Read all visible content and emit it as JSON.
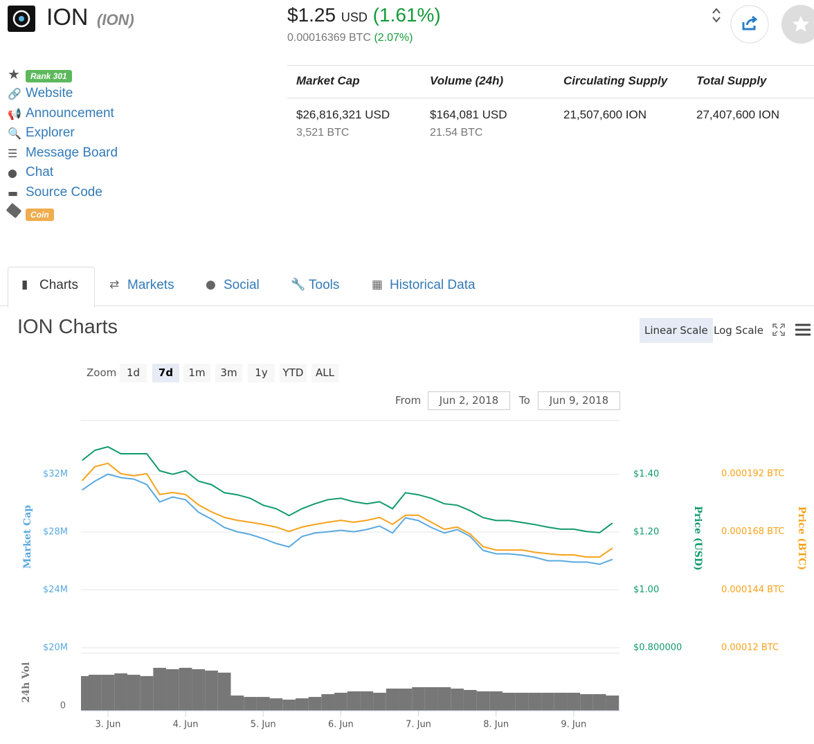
{
  "header": {
    "name": "ION",
    "symbol": "(ION)",
    "price": "$1.25",
    "currency": "USD",
    "change": "(1.61%)",
    "btc_price": "0.00016369 BTC",
    "btc_change": "(2.07%)"
  },
  "sidebar": {
    "rank": "Rank 301",
    "links": [
      "Website",
      "Announcement",
      "Explorer",
      "Message Board",
      "Chat",
      "Source Code"
    ],
    "tag": "Coin"
  },
  "stats": [
    {
      "label": "Market Cap",
      "value": "$26,816,321 USD",
      "btc": "3,521 BTC"
    },
    {
      "label": "Volume (24h)",
      "value": "$164,081 USD",
      "btc": "21.54 BTC"
    },
    {
      "label": "Circulating Supply",
      "value": "21,507,600 ION"
    },
    {
      "label": "Total Supply",
      "value": "27,407,600 ION"
    }
  ],
  "tabs": [
    "Charts",
    "Markets",
    "Social",
    "Tools",
    "Historical Data"
  ],
  "active_tab": 0,
  "chart_section": {
    "title": "ION Charts",
    "scale_buttons": [
      "Linear Scale",
      "Log Scale"
    ],
    "active_scale": 0,
    "zoom_label": "Zoom",
    "zoom_options": [
      "1d",
      "7d",
      "1m",
      "3m",
      "1y",
      "YTD",
      "ALL"
    ],
    "active_zoom": 1,
    "from_label": "From",
    "from": "Jun 2, 2018",
    "to_label": "To",
    "to": "Jun 9, 2018"
  },
  "chart_data": {
    "type": "line",
    "x": [
      "2018-06-02T16:00",
      "2018-06-02T20:00",
      "2018-06-03T00:00",
      "2018-06-03T04:00",
      "2018-06-03T08:00",
      "2018-06-03T12:00",
      "2018-06-03T16:00",
      "2018-06-03T20:00",
      "2018-06-04T00:00",
      "2018-06-04T04:00",
      "2018-06-04T08:00",
      "2018-06-04T12:00",
      "2018-06-04T16:00",
      "2018-06-04T20:00",
      "2018-06-05T00:00",
      "2018-06-05T04:00",
      "2018-06-05T08:00",
      "2018-06-05T12:00",
      "2018-06-05T16:00",
      "2018-06-05T20:00",
      "2018-06-06T00:00",
      "2018-06-06T04:00",
      "2018-06-06T08:00",
      "2018-06-06T12:00",
      "2018-06-06T16:00",
      "2018-06-06T20:00",
      "2018-06-07T00:00",
      "2018-06-07T04:00",
      "2018-06-07T08:00",
      "2018-06-07T12:00",
      "2018-06-07T16:00",
      "2018-06-07T20:00",
      "2018-06-08T00:00",
      "2018-06-08T04:00",
      "2018-06-08T08:00",
      "2018-06-08T12:00",
      "2018-06-08T16:00",
      "2018-06-08T20:00",
      "2018-06-09T00:00",
      "2018-06-09T04:00",
      "2018-06-09T08:00",
      "2018-06-09T12:00"
    ],
    "xlim": [
      "2018-06-02T15:40",
      "2018-06-09T14:10"
    ],
    "xticks": [
      {
        "value": "2018-06-03T00:00",
        "label": "3. Jun"
      },
      {
        "value": "2018-06-04T00:00",
        "label": "4. Jun"
      },
      {
        "value": "2018-06-05T00:00",
        "label": "5. Jun"
      },
      {
        "value": "2018-06-06T00:00",
        "label": "6. Jun"
      },
      {
        "value": "2018-06-07T00:00",
        "label": "7. Jun"
      },
      {
        "value": "2018-06-08T00:00",
        "label": "8. Jun"
      },
      {
        "value": "2018-06-09T00:00",
        "label": "9. Jun"
      }
    ],
    "ylim": [
      20000000,
      35710000
    ],
    "yticks": [
      {
        "value": 20000000,
        "label": "$20M"
      },
      {
        "value": 24000000,
        "label": "$24M"
      },
      {
        "value": 28000000,
        "label": "$28M"
      },
      {
        "value": 32000000,
        "label": "$32M"
      }
    ],
    "y2lim": [
      0.8,
      1.586
    ],
    "y2ticks": [
      {
        "value": 0.8,
        "label": "$0.800000"
      },
      {
        "value": 1,
        "label": "$1.00"
      },
      {
        "value": 1.2,
        "label": "$1.20"
      },
      {
        "value": 1.4,
        "label": "$1.40"
      }
    ],
    "y3lim": [
      0.00012,
      0.000214
    ],
    "y3ticks": [
      {
        "value": 0.00012,
        "label": "0.00012 BTC"
      },
      {
        "value": 0.000144,
        "label": "0.000144 BTC"
      },
      {
        "value": 0.000168,
        "label": "0.000168 BTC"
      },
      {
        "value": 0.000192,
        "label": "0.000192 BTC"
      }
    ],
    "vol_ylim": [
      0,
      620000
    ],
    "vol_yticks": [
      0
    ],
    "grid": true,
    "series": [
      {
        "name": "Market Cap",
        "color": "#5aa9e0",
        "axis": "y",
        "values": [
          30900000,
          31520000,
          32000000,
          31760000,
          31660000,
          31280000,
          30080000,
          30420000,
          30230000,
          29370000,
          28890000,
          28310000,
          28020000,
          27830000,
          27550000,
          27210000,
          26970000,
          27690000,
          27930000,
          28020000,
          28120000,
          28020000,
          28170000,
          28410000,
          27930000,
          28980000,
          28790000,
          28310000,
          27930000,
          28170000,
          27690000,
          26730000,
          26490000,
          26490000,
          26400000,
          26250000,
          26010000,
          26010000,
          25920000,
          25920000,
          25770000,
          26110000
        ]
      },
      {
        "name": "Price (BTC)",
        "color": "#f7a21b",
        "axis": "y3",
        "values": [
          0.0001891,
          0.0001949,
          0.0001963,
          0.000192,
          0.0001911,
          0.000192,
          0.0001834,
          0.0001842,
          0.0001834,
          0.0001791,
          0.0001762,
          0.0001739,
          0.0001727,
          0.0001719,
          0.000171,
          0.0001699,
          0.0001681,
          0.0001699,
          0.000171,
          0.0001719,
          0.0001727,
          0.0001719,
          0.0001727,
          0.0001739,
          0.000171,
          0.0001748,
          0.0001748,
          0.0001719,
          0.000169,
          0.0001699,
          0.000167,
          0.0001618,
          0.0001604,
          0.0001604,
          0.0001604,
          0.0001595,
          0.0001589,
          0.0001584,
          0.0001584,
          0.0001575,
          0.0001575,
          0.0001612
        ]
      },
      {
        "name": "Price (USD)",
        "color": "#109a6a",
        "axis": "y2",
        "values": [
          1.448,
          1.483,
          1.495,
          1.471,
          1.471,
          1.471,
          1.412,
          1.4,
          1.412,
          1.376,
          1.364,
          1.336,
          1.329,
          1.317,
          1.293,
          1.281,
          1.257,
          1.281,
          1.298,
          1.312,
          1.317,
          1.305,
          1.298,
          1.305,
          1.281,
          1.336,
          1.329,
          1.317,
          1.298,
          1.293,
          1.274,
          1.25,
          1.24,
          1.24,
          1.233,
          1.226,
          1.217,
          1.21,
          1.21,
          1.202,
          1.198,
          1.231
        ]
      },
      {
        "name": "24h Vol",
        "color": "#777777",
        "axis": "vol",
        "type": "bar",
        "values": [
          374000,
          388000,
          388000,
          403000,
          388000,
          374000,
          463000,
          448000,
          463000,
          448000,
          433000,
          411000,
          164000,
          149000,
          149000,
          134000,
          120000,
          134000,
          149000,
          179000,
          194000,
          209000,
          209000,
          194000,
          239000,
          239000,
          254000,
          254000,
          254000,
          239000,
          224000,
          209000,
          209000,
          194000,
          194000,
          194000,
          194000,
          194000,
          194000,
          179000,
          179000,
          164000
        ]
      }
    ]
  }
}
